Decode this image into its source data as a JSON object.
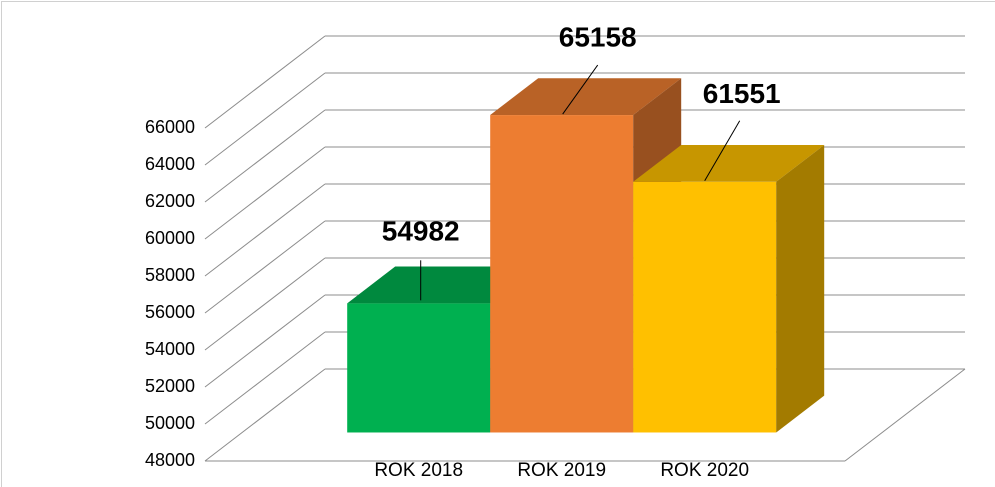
{
  "chart_data": {
    "type": "bar3d",
    "categories": [
      "ROK 2018",
      "ROK 2019",
      "ROK 2020"
    ],
    "values": [
      54982,
      65158,
      61551
    ],
    "colors": [
      "#00b050",
      "#ed7d31",
      "#ffc000"
    ],
    "ylim": [
      48000,
      66000
    ],
    "yticks": [
      48000,
      50000,
      52000,
      54000,
      56000,
      58000,
      60000,
      62000,
      64000,
      66000
    ],
    "grid": true
  }
}
